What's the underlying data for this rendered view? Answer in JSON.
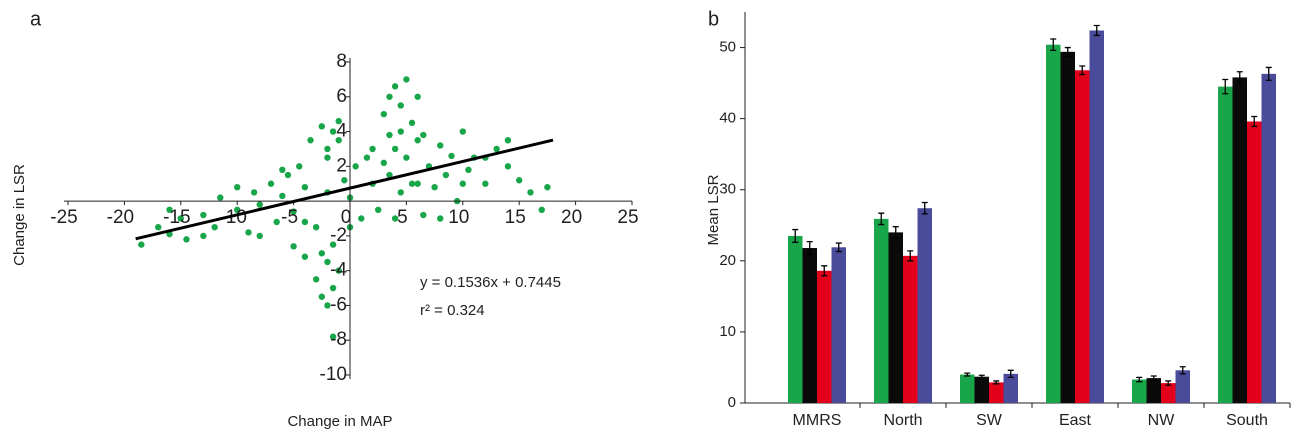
{
  "chart_data": [
    {
      "type": "scatter",
      "panel_label": "a",
      "x_label": "Change in MAP",
      "y_label": "Change in LSR",
      "xlim": [
        -25,
        25
      ],
      "xticks": [
        -25,
        -20,
        -15,
        -10,
        -5,
        0,
        5,
        10,
        15,
        20,
        25
      ],
      "ylim": [
        -10,
        8
      ],
      "yticks": [
        -10,
        -8,
        -6,
        -4,
        -2,
        2,
        4,
        6,
        8
      ],
      "color": "#19a64a",
      "x": [
        -18.5,
        -17,
        -16,
        -15,
        -14.5,
        -13,
        -12,
        -11.5,
        -10,
        -9,
        -8.5,
        -8,
        -7,
        -6.5,
        -6,
        -5.5,
        -5,
        -4.5,
        -4,
        -3.5,
        -3,
        -2.5,
        -2,
        -1.5,
        -1,
        -0.5,
        0,
        0.5,
        1,
        1.5,
        2,
        2.5,
        3,
        3.5,
        4,
        4.5,
        5,
        5.5,
        6,
        6.5,
        7,
        7.5,
        8,
        8.5,
        9,
        9.5,
        10,
        10.5,
        11,
        12,
        13,
        14,
        15,
        16,
        17,
        17.5,
        -16,
        -13,
        -10,
        -8,
        -6,
        -4,
        -2,
        0,
        2,
        4,
        6,
        8,
        10,
        12,
        14,
        3,
        3.5,
        4,
        4.5,
        5,
        5.5,
        6,
        6.5,
        4.5,
        3.5,
        -1,
        -2,
        -1.5,
        -3,
        -2.5,
        -2,
        -1.5,
        -2,
        -2.5,
        -1,
        -1.5,
        -4,
        -5
      ],
      "y": [
        -2.5,
        -1.5,
        -1.9,
        -1.0,
        -2.2,
        -0.8,
        -1.5,
        0.2,
        -0.5,
        -1.8,
        0.5,
        -0.2,
        1.0,
        -1.2,
        0.3,
        1.5,
        -0.6,
        2.0,
        0.8,
        3.5,
        -1.5,
        4.3,
        0.5,
        -2.5,
        4.6,
        1.2,
        0.2,
        2.0,
        -1.0,
        2.5,
        1.0,
        -0.5,
        2.2,
        1.5,
        3.0,
        0.5,
        2.5,
        1.0,
        3.5,
        -0.8,
        2.0,
        0.8,
        3.2,
        1.5,
        2.6,
        0.0,
        4.0,
        1.8,
        2.5,
        1.0,
        3.0,
        2.0,
        1.2,
        0.5,
        -0.5,
        0.8,
        -0.5,
        -2.0,
        0.8,
        -2.0,
        1.8,
        -1.2,
        2.5,
        -1.5,
        3.0,
        -1.0,
        1.0,
        -1.0,
        1.0,
        2.5,
        3.5,
        5.0,
        6.0,
        6.6,
        5.5,
        7.0,
        4.5,
        6.0,
        3.8,
        4.0,
        3.8,
        3.5,
        3.0,
        4.0,
        -4.5,
        -5.5,
        -3.5,
        -5.0,
        -6.0,
        -3.0,
        -4.0,
        -7.8,
        -3.2,
        -2.6
      ],
      "fit": {
        "x": [
          -19,
          18
        ],
        "y": [
          -2.17,
          3.51
        ],
        "color": "#000000"
      },
      "annotations": [
        "y = 0.1536x + 0.7445",
        "r² = 0.324"
      ]
    },
    {
      "type": "bar",
      "panel_label": "b",
      "y_label": "Mean LSR",
      "categories": [
        "MMRS",
        "North",
        "SW",
        "East",
        "NW",
        "South"
      ],
      "ylim": [
        0,
        55
      ],
      "yticks": [
        0,
        10,
        20,
        30,
        40,
        50
      ],
      "series": [
        {
          "color": "#19a64a",
          "values": [
            23.5,
            25.9,
            4.0,
            50.4,
            3.3,
            44.5
          ],
          "errors": [
            0.9,
            0.8,
            0.2,
            0.8,
            0.3,
            1.0
          ]
        },
        {
          "color": "#0a0a0a",
          "values": [
            21.8,
            24.0,
            3.7,
            49.4,
            3.5,
            45.8
          ],
          "errors": [
            0.9,
            0.8,
            0.2,
            0.6,
            0.3,
            0.8
          ]
        },
        {
          "color": "#e2001a",
          "values": [
            18.6,
            20.7,
            2.9,
            46.8,
            2.8,
            39.6
          ],
          "errors": [
            0.7,
            0.7,
            0.2,
            0.6,
            0.3,
            0.7
          ]
        },
        {
          "color": "#4b4b9c",
          "values": [
            21.9,
            27.4,
            4.1,
            52.4,
            4.6,
            46.3
          ],
          "errors": [
            0.6,
            0.8,
            0.5,
            0.7,
            0.5,
            0.9
          ]
        }
      ]
    }
  ]
}
